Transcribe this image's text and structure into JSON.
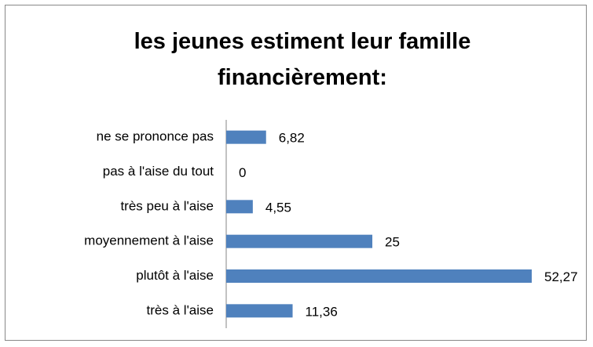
{
  "chart_data": {
    "type": "bar",
    "orientation": "horizontal",
    "title": "les jeunes estiment leur famille financièrement:",
    "categories": [
      "ne se prononce pas",
      "pas à l'aise du tout",
      "très peu à l'aise",
      "moyennement à l'aise",
      "plutôt à l'aise",
      "très à l'aise"
    ],
    "values": [
      6.82,
      0,
      4.55,
      25,
      52.27,
      11.36
    ],
    "value_labels": [
      "6,82",
      "0",
      "4,55",
      "25",
      "52,27",
      "11,36"
    ],
    "color": "#4f81bd"
  }
}
